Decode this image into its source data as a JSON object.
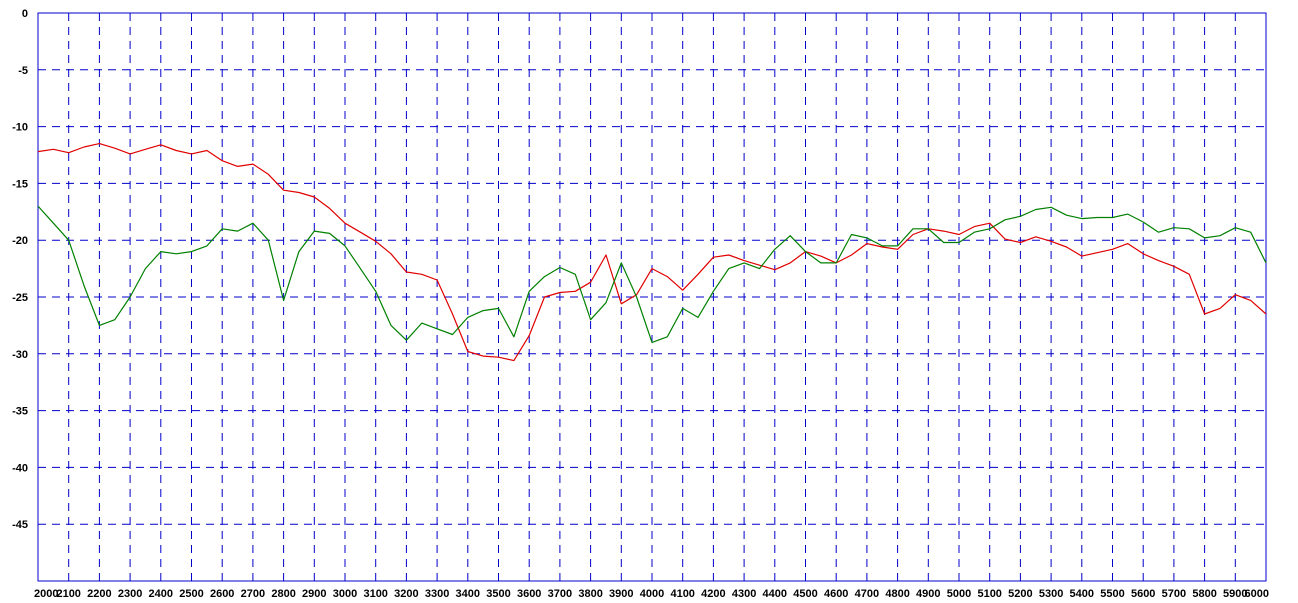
{
  "chart_data": {
    "type": "line",
    "title": "",
    "xlabel": "",
    "ylabel": "",
    "xlim": [
      2000,
      6000
    ],
    "ylim": [
      -50,
      0
    ],
    "grid": true,
    "x_ticks": [
      2000,
      2100,
      2200,
      2300,
      2400,
      2500,
      2600,
      2700,
      2800,
      2900,
      3000,
      3100,
      3200,
      3300,
      3400,
      3500,
      3600,
      3700,
      3800,
      3900,
      4000,
      4100,
      4200,
      4300,
      4400,
      4500,
      4600,
      4700,
      4800,
      4900,
      5000,
      5100,
      5200,
      5300,
      5400,
      5500,
      5600,
      5700,
      5800,
      5900,
      6000
    ],
    "y_ticks": [
      0,
      -5,
      -10,
      -15,
      -20,
      -25,
      -30,
      -35,
      -40,
      -45
    ],
    "y_tick_labels": [
      "0",
      "-5",
      "-10",
      "-15",
      "-20",
      "-25",
      "-30",
      "-35",
      "-40",
      "-45"
    ],
    "colors": {
      "grid": "#0000cc",
      "axis": "#0000cc",
      "red_series": "#e00000",
      "green_series": "#008000"
    },
    "series": [
      {
        "color": "#e00000",
        "x": [
          2000,
          2050,
          2100,
          2150,
          2200,
          2250,
          2300,
          2350,
          2400,
          2450,
          2500,
          2550,
          2600,
          2650,
          2700,
          2750,
          2800,
          2850,
          2900,
          2950,
          3000,
          3050,
          3100,
          3150,
          3200,
          3250,
          3300,
          3350,
          3400,
          3450,
          3500,
          3550,
          3600,
          3650,
          3700,
          3750,
          3800,
          3850,
          3900,
          3950,
          4000,
          4050,
          4100,
          4150,
          4200,
          4250,
          4300,
          4350,
          4400,
          4450,
          4500,
          4550,
          4600,
          4650,
          4700,
          4750,
          4800,
          4850,
          4900,
          4950,
          5000,
          5050,
          5100,
          5150,
          5200,
          5250,
          5300,
          5350,
          5400,
          5450,
          5500,
          5550,
          5600,
          5650,
          5700,
          5750,
          5800,
          5850,
          5900,
          5950,
          6000
        ],
        "y": [
          -12.2,
          -12.0,
          -12.3,
          -11.8,
          -11.5,
          -11.9,
          -12.4,
          -12.0,
          -11.6,
          -12.1,
          -12.4,
          -12.1,
          -13.0,
          -13.5,
          -13.3,
          -14.2,
          -15.6,
          -15.8,
          -16.2,
          -17.2,
          -18.5,
          -19.3,
          -20.1,
          -21.2,
          -22.8,
          -23.0,
          -23.5,
          -26.5,
          -29.8,
          -30.2,
          -30.3,
          -30.6,
          -28.4,
          -25.0,
          -24.6,
          -24.5,
          -23.7,
          -21.3,
          -25.6,
          -24.8,
          -22.5,
          -23.2,
          -24.4,
          -23.0,
          -21.5,
          -21.3,
          -21.8,
          -22.2,
          -22.6,
          -22.0,
          -21.0,
          -21.4,
          -22.0,
          -21.3,
          -20.3,
          -20.6,
          -20.8,
          -19.5,
          -19.0,
          -19.2,
          -19.5,
          -18.8,
          -18.5,
          -19.9,
          -20.2,
          -19.7,
          -20.1,
          -20.6,
          -21.4,
          -21.1,
          -20.8,
          -20.3,
          -21.2,
          -21.8,
          -22.3,
          -23.0,
          -26.5,
          -26.0,
          -24.8,
          -25.3,
          -26.5
        ]
      },
      {
        "color": "#008000",
        "x": [
          2000,
          2050,
          2100,
          2150,
          2200,
          2250,
          2300,
          2350,
          2400,
          2450,
          2500,
          2550,
          2600,
          2650,
          2700,
          2750,
          2800,
          2850,
          2900,
          2950,
          3000,
          3050,
          3100,
          3150,
          3200,
          3250,
          3300,
          3350,
          3400,
          3450,
          3500,
          3550,
          3600,
          3650,
          3700,
          3750,
          3800,
          3850,
          3900,
          3950,
          4000,
          4050,
          4100,
          4150,
          4200,
          4250,
          4300,
          4350,
          4400,
          4450,
          4500,
          4550,
          4600,
          4650,
          4700,
          4750,
          4800,
          4850,
          4900,
          4950,
          5000,
          5050,
          5100,
          5150,
          5200,
          5250,
          5300,
          5350,
          5400,
          5450,
          5500,
          5550,
          5600,
          5650,
          5700,
          5750,
          5800,
          5850,
          5900,
          5950,
          6000
        ],
        "y": [
          -17.0,
          -18.5,
          -20.0,
          -24.0,
          -27.5,
          -27.0,
          -25.0,
          -22.5,
          -21.0,
          -21.2,
          -21.0,
          -20.5,
          -19.0,
          -19.2,
          -18.5,
          -20.0,
          -25.3,
          -21.0,
          -19.2,
          -19.4,
          -20.5,
          -22.5,
          -24.5,
          -27.5,
          -28.8,
          -27.3,
          -27.8,
          -28.3,
          -26.8,
          -26.2,
          -26.0,
          -28.5,
          -24.5,
          -23.2,
          -22.4,
          -23.0,
          -27.0,
          -25.5,
          -22.0,
          -25.0,
          -29.0,
          -28.5,
          -26.0,
          -26.8,
          -24.5,
          -22.5,
          -22.0,
          -22.5,
          -20.8,
          -19.6,
          -21.0,
          -22.0,
          -22.0,
          -19.5,
          -19.8,
          -20.5,
          -20.5,
          -19.0,
          -19.0,
          -20.2,
          -20.2,
          -19.3,
          -19.0,
          -18.2,
          -17.9,
          -17.3,
          -17.1,
          -17.8,
          -18.1,
          -18.0,
          -18.0,
          -17.7,
          -18.4,
          -19.3,
          -18.9,
          -19.0,
          -19.8,
          -19.6,
          -18.9,
          -19.3,
          -22.0
        ]
      }
    ]
  }
}
